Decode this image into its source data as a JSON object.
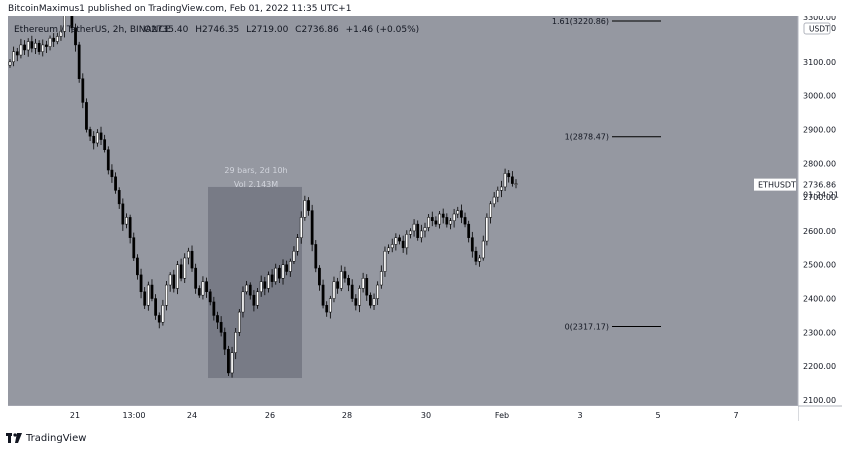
{
  "header": {
    "publisher": "BitcoinMaximus1 published on TradingView.com, Feb 01, 2022 11:35 UTC+1"
  },
  "legend": {
    "symbol": "Ethereum / TetherUS, 2h, BINANCE",
    "open_label": "O",
    "open": "2735.40",
    "high_label": "H",
    "high": "2746.35",
    "low_label": "L",
    "low": "2719.00",
    "close_label": "C",
    "close": "2736.86",
    "change": "+1.46 (+0.05%)"
  },
  "footer": {
    "brand": "TradingView"
  },
  "colors": {
    "background": "#9598a1",
    "up": "#ffffff",
    "down": "#000000",
    "range_box": "#787b86"
  },
  "chart_data": {
    "type": "candlestick",
    "ylim": [
      2100,
      3300
    ],
    "y_ticks": [
      2100,
      2200,
      2300,
      2400,
      2500,
      2600,
      2700,
      2800,
      2900,
      3000,
      3100,
      3200
    ],
    "y_tick_labels": [
      "2100.00",
      "2200.00",
      "2300.00",
      "2400.00",
      "2500.00",
      "2600.00",
      "2700.00",
      "2800.00",
      "2900.00",
      "3000.00",
      "3100.00",
      "3200.00"
    ],
    "top_tick_label": "3300.00",
    "currency": "USDT",
    "x_labels": [
      "21",
      "13:00",
      "24",
      "26",
      "28",
      "30",
      "Feb",
      "3",
      "5",
      "7"
    ],
    "fib_levels": [
      {
        "label": "1.61(3220.86)",
        "value": 3220.86
      },
      {
        "label": "1(2878.47)",
        "value": 2878.47
      },
      {
        "label": "0(2317.17)",
        "value": 2317.17
      }
    ],
    "range_box": {
      "y_from": 2165,
      "y_to": 2730,
      "bars_text": "29 bars, 2d 10h",
      "vol_text": "Vol 2.143M"
    },
    "price_tag": {
      "symbol": "ETHUSDT",
      "price": "2736.86",
      "countdown": "01:24:21",
      "value": 2736.86
    },
    "closes": [
      3100,
      3130,
      3120,
      3150,
      3135,
      3160,
      3140,
      3155,
      3130,
      3150,
      3145,
      3170,
      3160,
      3175,
      3190,
      3260,
      3280,
      3200,
      3150,
      3050,
      2980,
      2900,
      2880,
      2860,
      2890,
      2870,
      2840,
      2780,
      2760,
      2720,
      2680,
      2620,
      2640,
      2580,
      2520,
      2470,
      2420,
      2380,
      2440,
      2400,
      2350,
      2330,
      2380,
      2440,
      2470,
      2430,
      2500,
      2460,
      2520,
      2540,
      2490,
      2430,
      2410,
      2450,
      2420,
      2390,
      2350,
      2330,
      2300,
      2250,
      2180,
      2240,
      2300,
      2360,
      2420,
      2440,
      2410,
      2380,
      2420,
      2450,
      2430,
      2470,
      2450,
      2490,
      2460,
      2500,
      2480,
      2510,
      2540,
      2580,
      2640,
      2690,
      2660,
      2560,
      2490,
      2440,
      2380,
      2360,
      2400,
      2450,
      2430,
      2480,
      2460,
      2440,
      2400,
      2380,
      2430,
      2460,
      2410,
      2380,
      2400,
      2440,
      2480,
      2540,
      2550,
      2560,
      2580,
      2570,
      2550,
      2590,
      2600,
      2620,
      2580,
      2600,
      2610,
      2640,
      2630,
      2620,
      2650,
      2640,
      2620,
      2630,
      2650,
      2660,
      2640,
      2620,
      2580,
      2540,
      2510,
      2520,
      2570,
      2640,
      2680,
      2700,
      2720,
      2730,
      2770,
      2760,
      2740,
      2740
    ]
  }
}
